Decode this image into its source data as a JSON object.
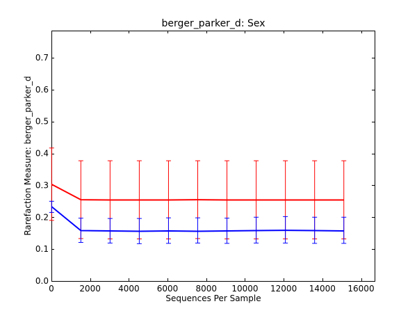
{
  "chart_data": {
    "type": "line",
    "title": "berger_parker_d: Sex",
    "xlabel": "Sequences Per Sample",
    "ylabel": "Rarefaction Measure: berger_parker_d",
    "xlim": [
      0,
      16700
    ],
    "ylim": [
      0,
      0.785
    ],
    "xticks": [
      0,
      2000,
      4000,
      6000,
      8000,
      10000,
      12000,
      14000,
      16000
    ],
    "yticks": [
      0.0,
      0.1,
      0.2,
      0.3,
      0.4,
      0.5,
      0.6,
      0.7
    ],
    "xtick_labels": [
      "0",
      "2000",
      "4000",
      "6000",
      "8000",
      "10000",
      "12000",
      "14000",
      "16000"
    ],
    "ytick_labels": [
      "0.0",
      "0.1",
      "0.2",
      "0.3",
      "0.4",
      "0.5",
      "0.6",
      "0.7"
    ],
    "grid": false,
    "legend": "none",
    "x": [
      10,
      1520,
      3030,
      4540,
      6050,
      7560,
      9070,
      10580,
      12090,
      13600,
      15110
    ],
    "series": [
      {
        "color": "#ff0000",
        "values": [
          0.303,
          0.255,
          0.254,
          0.254,
          0.254,
          0.255,
          0.254,
          0.254,
          0.254,
          0.254,
          0.254
        ],
        "err_low": [
          0.19,
          0.133,
          0.132,
          0.132,
          0.132,
          0.133,
          0.132,
          0.132,
          0.132,
          0.132,
          0.132
        ],
        "err_high": [
          0.417,
          0.377,
          0.377,
          0.377,
          0.377,
          0.377,
          0.377,
          0.377,
          0.377,
          0.377,
          0.377
        ]
      },
      {
        "color": "#0000ff",
        "values": [
          0.233,
          0.158,
          0.157,
          0.156,
          0.157,
          0.156,
          0.157,
          0.158,
          0.159,
          0.158,
          0.157
        ],
        "err_low": [
          0.215,
          0.121,
          0.119,
          0.117,
          0.118,
          0.119,
          0.118,
          0.119,
          0.119,
          0.118,
          0.118
        ],
        "err_high": [
          0.25,
          0.197,
          0.196,
          0.196,
          0.198,
          0.198,
          0.197,
          0.2,
          0.202,
          0.2,
          0.2
        ]
      }
    ]
  }
}
